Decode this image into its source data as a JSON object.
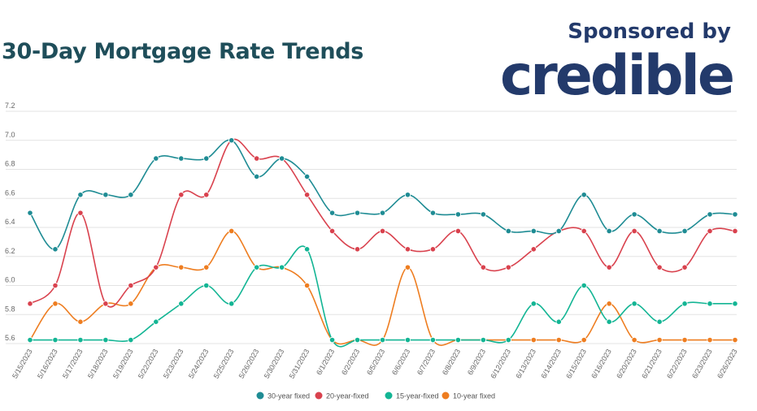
{
  "header": {
    "title": "30-Day Mortgage Rate Trends",
    "sponsor_text": "Sponsored by",
    "sponsor_brand": "credible"
  },
  "chart_data": {
    "type": "line",
    "title": "30-Day Mortgage Rate Trends",
    "xlabel": "",
    "ylabel": "",
    "ylim": [
      5.6,
      7.2
    ],
    "yticks": [
      "5.6",
      "5.8",
      "6.0",
      "6.2",
      "6.4",
      "6.6",
      "6.8",
      "7.0",
      "7.2"
    ],
    "grid": true,
    "legend_position": "bottom",
    "categories": [
      "5/15/2023",
      "5/16/2023",
      "5/17/2023",
      "5/18/2023",
      "5/19/2023",
      "5/22/2023",
      "5/23/2023",
      "5/24/2023",
      "5/25/2023",
      "5/26/2023",
      "5/30/2023",
      "5/31/2023",
      "6/1/2023",
      "6/2/2023",
      "6/5/2023",
      "6/6/2023",
      "6/7/2023",
      "6/8/2023",
      "6/9/2023",
      "6/12/2023",
      "6/13/2023",
      "6/14/2023",
      "6/15/2023",
      "6/16/2023",
      "6/20/2023",
      "6/21/2023",
      "6/22/2023",
      "6/23/2023",
      "6/26/2023"
    ],
    "series": [
      {
        "name": "30-year fixed",
        "color": "#1f8c94",
        "values": [
          6.5,
          6.25,
          6.625,
          6.625,
          6.625,
          6.875,
          6.875,
          6.875,
          7.0,
          6.75,
          6.875,
          6.75,
          6.5,
          6.5,
          6.5,
          6.625,
          6.5,
          6.49,
          6.49,
          6.375,
          6.375,
          6.375,
          6.625,
          6.375,
          6.49,
          6.375,
          6.375,
          6.49,
          6.49
        ]
      },
      {
        "name": "20-year-fixed",
        "color": "#d9424e",
        "values": [
          5.875,
          6.0,
          6.5,
          5.875,
          6.0,
          6.125,
          6.625,
          6.625,
          7.0,
          6.875,
          6.875,
          6.625,
          6.375,
          6.25,
          6.375,
          6.25,
          6.25,
          6.375,
          6.125,
          6.125,
          6.25,
          6.375,
          6.375,
          6.125,
          6.375,
          6.125,
          6.125,
          6.375,
          6.375
        ]
      },
      {
        "name": "15-year-fixed",
        "color": "#13b594",
        "values": [
          5.625,
          5.625,
          5.625,
          5.625,
          5.625,
          5.75,
          5.875,
          6.0,
          5.875,
          6.125,
          6.125,
          6.25,
          5.625,
          5.625,
          5.625,
          5.625,
          5.625,
          5.625,
          5.625,
          5.625,
          5.875,
          5.75,
          6.0,
          5.75,
          5.875,
          5.75,
          5.875,
          5.875,
          5.875
        ]
      },
      {
        "name": "10-year fixed",
        "color": "#ee7d20",
        "values": [
          5.625,
          5.875,
          5.75,
          5.875,
          5.875,
          6.125,
          6.125,
          6.125,
          6.375,
          6.125,
          6.125,
          6.0,
          5.625,
          5.625,
          5.625,
          6.125,
          5.625,
          5.625,
          5.625,
          5.625,
          5.625,
          5.625,
          5.625,
          5.875,
          5.625,
          5.625,
          5.625,
          5.625,
          5.625
        ]
      }
    ]
  }
}
